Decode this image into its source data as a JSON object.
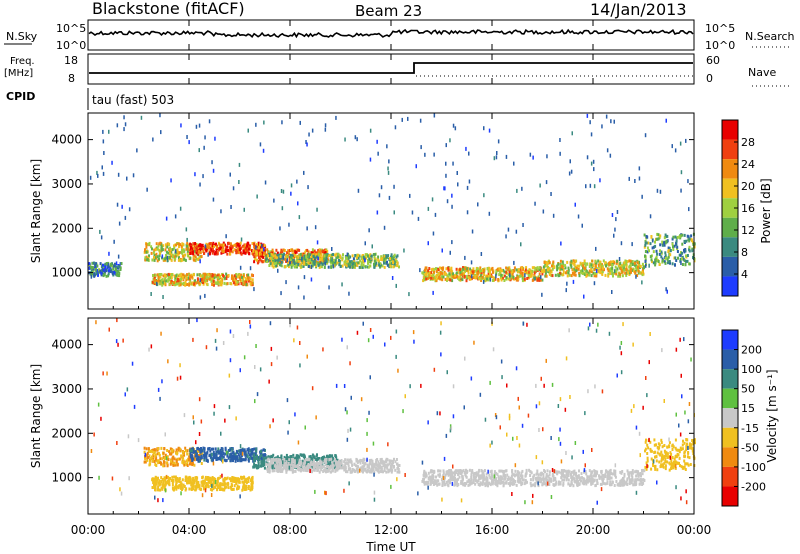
{
  "header": {
    "station": "Blackstone (fitACF)",
    "beam": "Beam 23",
    "date": "14/Jan/2013"
  },
  "strip": {
    "nsky_label": "N.Sky",
    "nsky_top": "10^5",
    "nsky_bottom": "10^0",
    "nsearch_label": "N.Search",
    "nsearch_top": "10^5",
    "nsearch_bottom": "10^0",
    "freq_label": "Freq.",
    "freq_unit": "[MHz]",
    "freq_top": "18",
    "freq_bottom": "8",
    "nave_label": "Nave",
    "nave_top": "60",
    "nave_bottom": "0",
    "cpid_label": "CPID",
    "cpid_value": "tau (fast) 503"
  },
  "chart_data": [
    {
      "type": "heatmap",
      "name": "power-panel",
      "ylabel": "Slant Range [km]",
      "yticks": [
        "1000",
        "2000",
        "3000",
        "4000"
      ],
      "ylim": [
        180,
        4600
      ],
      "xlim": [
        0,
        24
      ],
      "colorbar_label": "Power [dB]",
      "colorbar_ticks": [
        "4",
        "8",
        "12",
        "16",
        "20",
        "24",
        "28"
      ],
      "colorbar_range": [
        0,
        32
      ],
      "colors": [
        "#1e3cff",
        "#2a5ea8",
        "#3a8a80",
        "#5fae4a",
        "#9fd040",
        "#f0c020",
        "#f08a10",
        "#f04010",
        "#e80000"
      ],
      "echo_bands": [
        {
          "t_start": 0.0,
          "t_end": 1.3,
          "r_low": 950,
          "r_high": 1250,
          "level": 8
        },
        {
          "t_start": 2.2,
          "t_end": 4.5,
          "r_low": 1300,
          "r_high": 1700,
          "level": 18
        },
        {
          "t_start": 4.0,
          "t_end": 7.0,
          "r_low": 1450,
          "r_high": 1700,
          "level": 27
        },
        {
          "t_start": 6.5,
          "t_end": 9.5,
          "r_low": 1250,
          "r_high": 1550,
          "level": 24
        },
        {
          "t_start": 2.5,
          "t_end": 6.5,
          "r_low": 750,
          "r_high": 1000,
          "level": 20
        },
        {
          "t_start": 7.0,
          "t_end": 12.3,
          "r_low": 1150,
          "r_high": 1450,
          "level": 14
        },
        {
          "t_start": 13.2,
          "t_end": 18.0,
          "r_low": 850,
          "r_high": 1150,
          "level": 20
        },
        {
          "t_start": 18.0,
          "t_end": 22.0,
          "r_low": 950,
          "r_high": 1300,
          "level": 18
        },
        {
          "t_start": 22.0,
          "t_end": 24.0,
          "r_low": 1200,
          "r_high": 1900,
          "level": 12
        }
      ]
    },
    {
      "type": "heatmap",
      "name": "velocity-panel",
      "ylabel": "Slant Range [km]",
      "yticks": [
        "1000",
        "2000",
        "3000",
        "4000"
      ],
      "ylim": [
        180,
        4600
      ],
      "xlim": [
        0,
        24
      ],
      "xlabel": "Time UT",
      "xticks": [
        "00:00",
        "04:00",
        "08:00",
        "12:00",
        "16:00",
        "20:00",
        "00:00"
      ],
      "colorbar_label": "Velocity [m s⁻¹]",
      "colorbar_ticks": [
        "200",
        "100",
        "50",
        "15",
        "-15",
        "-50",
        "-100",
        "-200"
      ],
      "colors": [
        "#1e3cff",
        "#2a5ea8",
        "#3a8a80",
        "#5fc040",
        "#c8c8c8",
        "#f0c020",
        "#f08a10",
        "#f04010",
        "#e80000"
      ],
      "echo_bands": [
        {
          "t_start": 2.2,
          "t_end": 4.5,
          "r_low": 1300,
          "r_high": 1700,
          "level": -50
        },
        {
          "t_start": 4.0,
          "t_end": 7.0,
          "r_low": 1400,
          "r_high": 1700,
          "level": 80
        },
        {
          "t_start": 6.5,
          "t_end": 10.0,
          "r_low": 1250,
          "r_high": 1550,
          "level": 60
        },
        {
          "t_start": 2.5,
          "t_end": 6.5,
          "r_low": 750,
          "r_high": 1050,
          "level": -30
        },
        {
          "t_start": 7.0,
          "t_end": 12.3,
          "r_low": 1150,
          "r_high": 1450,
          "level": 0
        },
        {
          "t_start": 13.2,
          "t_end": 22.0,
          "r_low": 850,
          "r_high": 1200,
          "level": 0
        },
        {
          "t_start": 22.0,
          "t_end": 24.0,
          "r_low": 1200,
          "r_high": 1900,
          "level": -40
        }
      ]
    }
  ]
}
